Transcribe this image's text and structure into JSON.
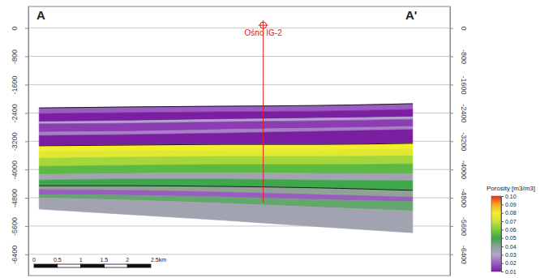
{
  "chart_data": {
    "type": "cross-section",
    "section_labels": [
      "A",
      "A'"
    ],
    "x": [
      0,
      2,
      4,
      6,
      8
    ],
    "xlim": [
      -0.23,
      8.8
    ],
    "ylim": [
      610,
      -7000
    ],
    "yticks": [
      0,
      -800,
      -1600,
      -2400,
      -3200,
      -4000,
      -4800,
      -5600,
      -6400
    ],
    "tick_labels": "y",
    "grid": true,
    "horizons": [
      [
        -2260,
        -2230,
        -2210,
        -2190,
        -2140
      ],
      [
        -2420,
        -2390,
        -2370,
        -2350,
        -2300
      ],
      [
        -2650,
        -2620,
        -2580,
        -2550,
        -2510
      ],
      [
        -2710,
        -2690,
        -2650,
        -2620,
        -2580
      ],
      [
        -2940,
        -2920,
        -2870,
        -2830,
        -2780
      ],
      [
        -3040,
        -3010,
        -2970,
        -2920,
        -2870
      ],
      [
        -3330,
        -3310,
        -3290,
        -3290,
        -3260
      ],
      [
        -3490,
        -3470,
        -3450,
        -3450,
        -3420
      ],
      [
        -3680,
        -3650,
        -3630,
        -3630,
        -3610
      ],
      [
        -3910,
        -3880,
        -3860,
        -3860,
        -3840
      ],
      [
        -4140,
        -4110,
        -4090,
        -4110,
        -4110
      ],
      [
        -4300,
        -4270,
        -4270,
        -4300,
        -4320
      ],
      [
        -4460,
        -4460,
        -4480,
        -4520,
        -4590
      ],
      [
        -4570,
        -4590,
        -4640,
        -4710,
        -4780
      ],
      [
        -4710,
        -4730,
        -4780,
        -4850,
        -4910
      ],
      [
        -4800,
        -4870,
        -4960,
        -5070,
        -5170
      ],
      [
        -5120,
        -5280,
        -5440,
        -5620,
        -5790
      ]
    ],
    "porosity": [
      0.02,
      0.01,
      0.03,
      0.015,
      0.025,
      0.01,
      0.08,
      0.075,
      0.065,
      0.055,
      0.035,
      0.05,
      0.04,
      0.02,
      0.045,
      0.035
    ],
    "well": {
      "name": "Ośno IG-2",
      "x": 4.8,
      "top": 80,
      "bottom": -4940,
      "color": "#e02020"
    },
    "colorbar": {
      "title": "Porosity [m3/m3]",
      "range": [
        0.01,
        0.1
      ],
      "ticks": [
        {
          "value": 0.1,
          "label": "0.10"
        },
        0.09,
        0.08,
        0.07,
        0.06,
        0.05,
        0.04,
        0.03,
        0.02,
        0.01
      ]
    },
    "scalebar": {
      "ticks": [
        0,
        0.5,
        1,
        1.5,
        2,
        {
          "value": 2.5,
          "label": "2.5km"
        }
      ]
    }
  }
}
